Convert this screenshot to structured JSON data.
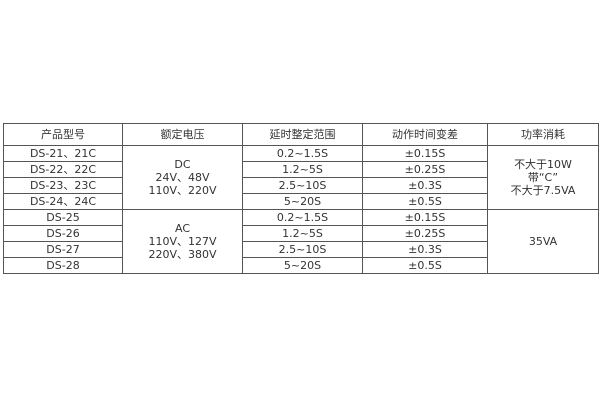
{
  "headers": [
    "产品型号",
    "额定电压",
    "延时整定范围",
    "动作时间变差",
    "功率消耗"
  ],
  "groups": [
    {
      "voltage": [
        "DC",
        "24V、48V",
        "110V、220V"
      ],
      "power": [
        "不大于10W",
        "带“C”",
        "不大于7.5VA"
      ],
      "rows": [
        {
          "model": "DS-21、21C",
          "range": "0.2~1.5S",
          "variance": "±0.15S"
        },
        {
          "model": "DS-22、22C",
          "range": "1.2~5S",
          "variance": "±0.25S"
        },
        {
          "model": "DS-23、23C",
          "range": "2.5~10S",
          "variance": "±0.3S"
        },
        {
          "model": "DS-24、24C",
          "range": "5~20S",
          "variance": "±0.5S"
        }
      ]
    },
    {
      "voltage": [
        "AC",
        "110V、127V",
        "220V、380V"
      ],
      "power": [
        "35VA"
      ],
      "rows": [
        {
          "model": "DS-25",
          "range": "0.2~1.5S",
          "variance": "±0.15S"
        },
        {
          "model": "DS-26",
          "range": "1.2~5S",
          "variance": "±0.25S"
        },
        {
          "model": "DS-27",
          "range": "2.5~10S",
          "variance": "±0.3S"
        },
        {
          "model": "DS-28",
          "range": "5~20S",
          "variance": "±0.5S"
        }
      ]
    }
  ]
}
